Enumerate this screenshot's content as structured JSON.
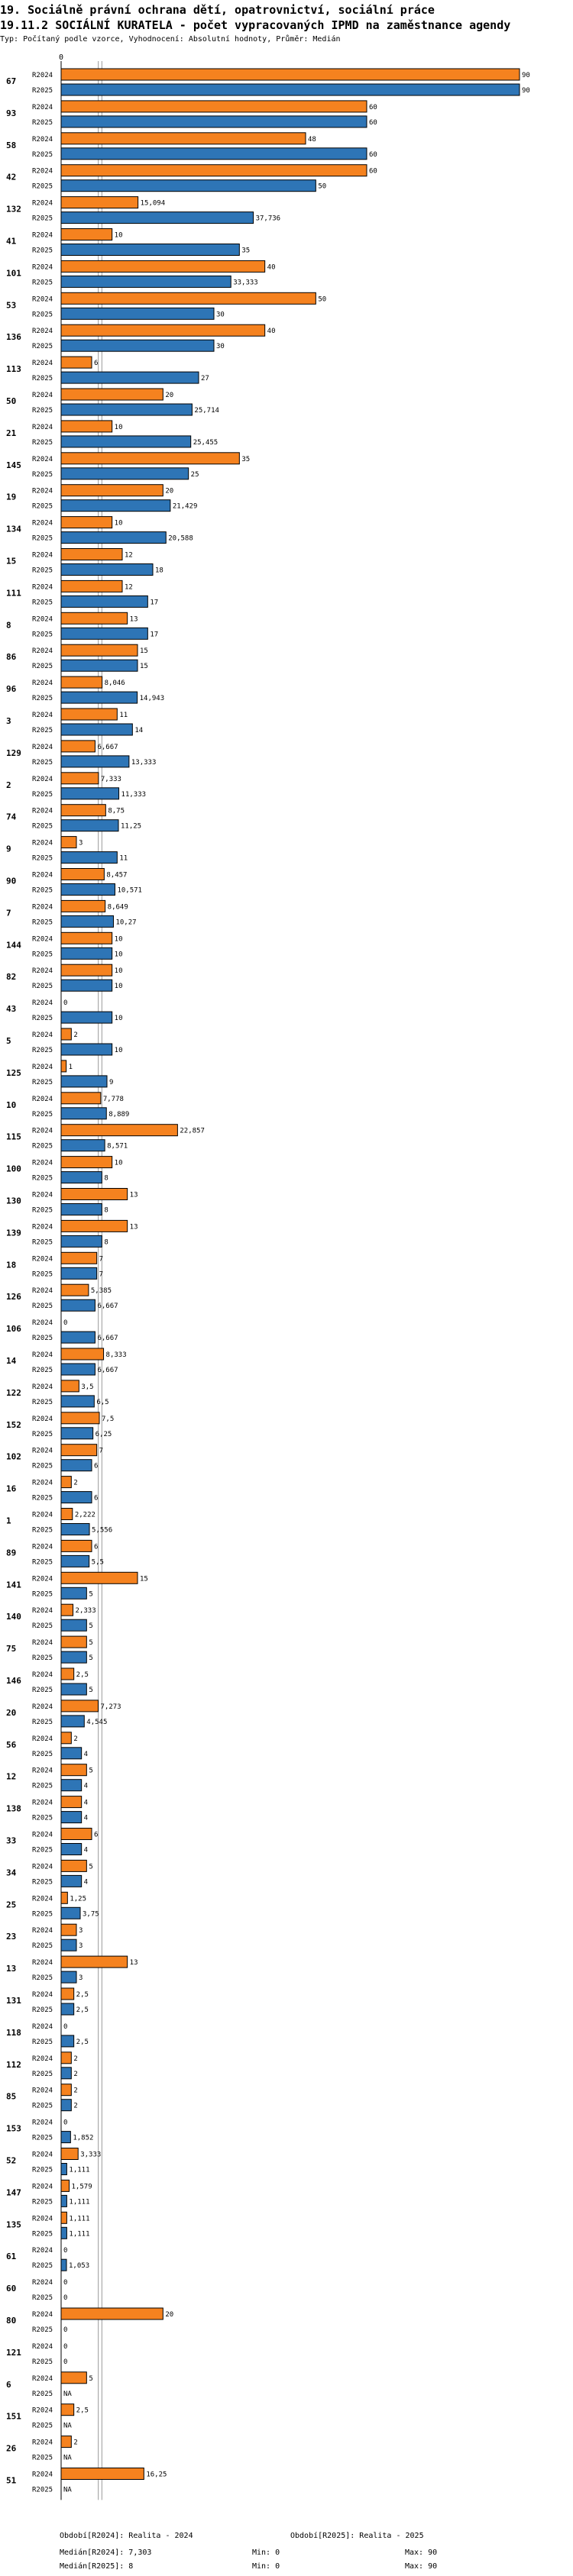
{
  "header": {
    "title_line1": "19. Sociálně právní ochrana dětí, opatrovnictví, sociální práce",
    "title_line2": "19.11.2 SOCIÁLNÍ KURATELA - počet vypracovaných IPMD na zaměstnance agendy",
    "subtitle": "Typ: Počítaný podle vzorce, Vyhodnocení: Absolutní hodnoty, Průměr: Medián"
  },
  "chart_data": {
    "type": "bar",
    "orientation": "horizontal",
    "x_ticks": [
      "0"
    ],
    "xlim": [
      0,
      90
    ],
    "series_names": [
      "R2024",
      "R2025"
    ],
    "colors": {
      "R2024": "#f5821f",
      "R2025": "#2e75b6"
    },
    "medians": {
      "R2024": 7.303,
      "R2025": 8
    },
    "groups": [
      {
        "id": "67",
        "v2024": 90,
        "l2024": "90",
        "v2025": 90,
        "l2025": "90"
      },
      {
        "id": "93",
        "v2024": 60,
        "l2024": "60",
        "v2025": 60,
        "l2025": "60"
      },
      {
        "id": "58",
        "v2024": 48,
        "l2024": "48",
        "v2025": 60,
        "l2025": "60"
      },
      {
        "id": "42",
        "v2024": 60,
        "l2024": "60",
        "v2025": 50,
        "l2025": "50"
      },
      {
        "id": "132",
        "v2024": 15.094,
        "l2024": "15,094",
        "v2025": 37.736,
        "l2025": "37,736"
      },
      {
        "id": "41",
        "v2024": 10,
        "l2024": "10",
        "v2025": 35,
        "l2025": "35"
      },
      {
        "id": "101",
        "v2024": 40,
        "l2024": "40",
        "v2025": 33.333,
        "l2025": "33,333"
      },
      {
        "id": "53",
        "v2024": 50,
        "l2024": "50",
        "v2025": 30,
        "l2025": "30"
      },
      {
        "id": "136",
        "v2024": 40,
        "l2024": "40",
        "v2025": 30,
        "l2025": "30"
      },
      {
        "id": "113",
        "v2024": 6,
        "l2024": "6",
        "v2025": 27,
        "l2025": "27"
      },
      {
        "id": "50",
        "v2024": 20,
        "l2024": "20",
        "v2025": 25.714,
        "l2025": "25,714"
      },
      {
        "id": "21",
        "v2024": 10,
        "l2024": "10",
        "v2025": 25.455,
        "l2025": "25,455"
      },
      {
        "id": "145",
        "v2024": 35,
        "l2024": "35",
        "v2025": 25,
        "l2025": "25"
      },
      {
        "id": "19",
        "v2024": 20,
        "l2024": "20",
        "v2025": 21.429,
        "l2025": "21,429"
      },
      {
        "id": "134",
        "v2024": 10,
        "l2024": "10",
        "v2025": 20.588,
        "l2025": "20,588"
      },
      {
        "id": "15",
        "v2024": 12,
        "l2024": "12",
        "v2025": 18,
        "l2025": "18"
      },
      {
        "id": "111",
        "v2024": 12,
        "l2024": "12",
        "v2025": 17,
        "l2025": "17"
      },
      {
        "id": "8",
        "v2024": 13,
        "l2024": "13",
        "v2025": 17,
        "l2025": "17"
      },
      {
        "id": "86",
        "v2024": 15,
        "l2024": "15",
        "v2025": 15,
        "l2025": "15"
      },
      {
        "id": "96",
        "v2024": 8.046,
        "l2024": "8,046",
        "v2025": 14.943,
        "l2025": "14,943"
      },
      {
        "id": "3",
        "v2024": 11,
        "l2024": "11",
        "v2025": 14,
        "l2025": "14"
      },
      {
        "id": "129",
        "v2024": 6.667,
        "l2024": "6,667",
        "v2025": 13.333,
        "l2025": "13,333"
      },
      {
        "id": "2",
        "v2024": 7.333,
        "l2024": "7,333",
        "v2025": 11.333,
        "l2025": "11,333"
      },
      {
        "id": "74",
        "v2024": 8.75,
        "l2024": "8,75",
        "v2025": 11.25,
        "l2025": "11,25"
      },
      {
        "id": "9",
        "v2024": 3,
        "l2024": "3",
        "v2025": 11,
        "l2025": "11"
      },
      {
        "id": "90",
        "v2024": 8.457,
        "l2024": "8,457",
        "v2025": 10.571,
        "l2025": "10,571"
      },
      {
        "id": "7",
        "v2024": 8.649,
        "l2024": "8,649",
        "v2025": 10.27,
        "l2025": "10,27"
      },
      {
        "id": "144",
        "v2024": 10,
        "l2024": "10",
        "v2025": 10,
        "l2025": "10"
      },
      {
        "id": "82",
        "v2024": 10,
        "l2024": "10",
        "v2025": 10,
        "l2025": "10"
      },
      {
        "id": "43",
        "v2024": 0,
        "l2024": "0",
        "v2025": 10,
        "l2025": "10"
      },
      {
        "id": "5",
        "v2024": 2,
        "l2024": "2",
        "v2025": 10,
        "l2025": "10"
      },
      {
        "id": "125",
        "v2024": 1,
        "l2024": "1",
        "v2025": 9,
        "l2025": "9"
      },
      {
        "id": "10",
        "v2024": 7.778,
        "l2024": "7,778",
        "v2025": 8.889,
        "l2025": "8,889"
      },
      {
        "id": "115",
        "v2024": 22.857,
        "l2024": "22,857",
        "v2025": 8.571,
        "l2025": "8,571"
      },
      {
        "id": "100",
        "v2024": 10,
        "l2024": "10",
        "v2025": 8,
        "l2025": "8"
      },
      {
        "id": "130",
        "v2024": 13,
        "l2024": "13",
        "v2025": 8,
        "l2025": "8"
      },
      {
        "id": "139",
        "v2024": 13,
        "l2024": "13",
        "v2025": 8,
        "l2025": "8"
      },
      {
        "id": "18",
        "v2024": 7,
        "l2024": "7",
        "v2025": 7,
        "l2025": "7"
      },
      {
        "id": "126",
        "v2024": 5.385,
        "l2024": "5,385",
        "v2025": 6.667,
        "l2025": "6,667"
      },
      {
        "id": "106",
        "v2024": 0,
        "l2024": "0",
        "v2025": 6.667,
        "l2025": "6,667"
      },
      {
        "id": "14",
        "v2024": 8.333,
        "l2024": "8,333",
        "v2025": 6.667,
        "l2025": "6,667"
      },
      {
        "id": "122",
        "v2024": 3.5,
        "l2024": "3,5",
        "v2025": 6.5,
        "l2025": "6,5"
      },
      {
        "id": "152",
        "v2024": 7.5,
        "l2024": "7,5",
        "v2025": 6.25,
        "l2025": "6,25"
      },
      {
        "id": "102",
        "v2024": 7,
        "l2024": "7",
        "v2025": 6,
        "l2025": "6"
      },
      {
        "id": "16",
        "v2024": 2,
        "l2024": "2",
        "v2025": 6,
        "l2025": "6"
      },
      {
        "id": "1",
        "v2024": 2.222,
        "l2024": "2,222",
        "v2025": 5.556,
        "l2025": "5,556"
      },
      {
        "id": "89",
        "v2024": 6,
        "l2024": "6",
        "v2025": 5.5,
        "l2025": "5,5"
      },
      {
        "id": "141",
        "v2024": 15,
        "l2024": "15",
        "v2025": 5,
        "l2025": "5"
      },
      {
        "id": "140",
        "v2024": 2.333,
        "l2024": "2,333",
        "v2025": 5,
        "l2025": "5"
      },
      {
        "id": "75",
        "v2024": 5,
        "l2024": "5",
        "v2025": 5,
        "l2025": "5"
      },
      {
        "id": "146",
        "v2024": 2.5,
        "l2024": "2,5",
        "v2025": 5,
        "l2025": "5"
      },
      {
        "id": "20",
        "v2024": 7.273,
        "l2024": "7,273",
        "v2025": 4.545,
        "l2025": "4,545"
      },
      {
        "id": "56",
        "v2024": 2,
        "l2024": "2",
        "v2025": 4,
        "l2025": "4"
      },
      {
        "id": "12",
        "v2024": 5,
        "l2024": "5",
        "v2025": 4,
        "l2025": "4"
      },
      {
        "id": "138",
        "v2024": 4,
        "l2024": "4",
        "v2025": 4,
        "l2025": "4"
      },
      {
        "id": "33",
        "v2024": 6,
        "l2024": "6",
        "v2025": 4,
        "l2025": "4"
      },
      {
        "id": "34",
        "v2024": 5,
        "l2024": "5",
        "v2025": 4,
        "l2025": "4"
      },
      {
        "id": "25",
        "v2024": 1.25,
        "l2024": "1,25",
        "v2025": 3.75,
        "l2025": "3,75"
      },
      {
        "id": "23",
        "v2024": 3,
        "l2024": "3",
        "v2025": 3,
        "l2025": "3"
      },
      {
        "id": "13",
        "v2024": 13,
        "l2024": "13",
        "v2025": 3,
        "l2025": "3"
      },
      {
        "id": "131",
        "v2024": 2.5,
        "l2024": "2,5",
        "v2025": 2.5,
        "l2025": "2,5"
      },
      {
        "id": "118",
        "v2024": 0,
        "l2024": "0",
        "v2025": 2.5,
        "l2025": "2,5"
      },
      {
        "id": "112",
        "v2024": 2,
        "l2024": "2",
        "v2025": 2,
        "l2025": "2"
      },
      {
        "id": "85",
        "v2024": 2,
        "l2024": "2",
        "v2025": 2,
        "l2025": "2"
      },
      {
        "id": "153",
        "v2024": 0,
        "l2024": "0",
        "v2025": 1.852,
        "l2025": "1,852"
      },
      {
        "id": "52",
        "v2024": 3.333,
        "l2024": "3,333",
        "v2025": 1.111,
        "l2025": "1,111"
      },
      {
        "id": "147",
        "v2024": 1.579,
        "l2024": "1,579",
        "v2025": 1.111,
        "l2025": "1,111"
      },
      {
        "id": "135",
        "v2024": 1.111,
        "l2024": "1,111",
        "v2025": 1.111,
        "l2025": "1,111"
      },
      {
        "id": "61",
        "v2024": 0,
        "l2024": "0",
        "v2025": 1.053,
        "l2025": "1,053"
      },
      {
        "id": "60",
        "v2024": 0,
        "l2024": "0",
        "v2025": 0,
        "l2025": "0"
      },
      {
        "id": "80",
        "v2024": 20,
        "l2024": "20",
        "v2025": 0,
        "l2025": "0"
      },
      {
        "id": "121",
        "v2024": 0,
        "l2024": "0",
        "v2025": 0,
        "l2025": "0"
      },
      {
        "id": "6",
        "v2024": 5,
        "l2024": "5",
        "v2025": null,
        "l2025": "NA"
      },
      {
        "id": "151",
        "v2024": 2.5,
        "l2024": "2,5",
        "v2025": null,
        "l2025": "NA"
      },
      {
        "id": "26",
        "v2024": 2,
        "l2024": "2",
        "v2025": null,
        "l2025": "NA"
      },
      {
        "id": "51",
        "v2024": 16.25,
        "l2024": "16,25",
        "v2025": null,
        "l2025": "NA"
      }
    ]
  },
  "footer": {
    "period2024": "Období[R2024]: Realita - 2024",
    "period2025": "Období[R2025]: Realita - 2025",
    "median2024": "Medián[R2024]: 7,303",
    "median2025": "Medián[R2025]: 8",
    "min2024": "Min: 0",
    "min2025": "Min: 0",
    "max2024": "Max: 90",
    "max2025": "Max: 90"
  }
}
